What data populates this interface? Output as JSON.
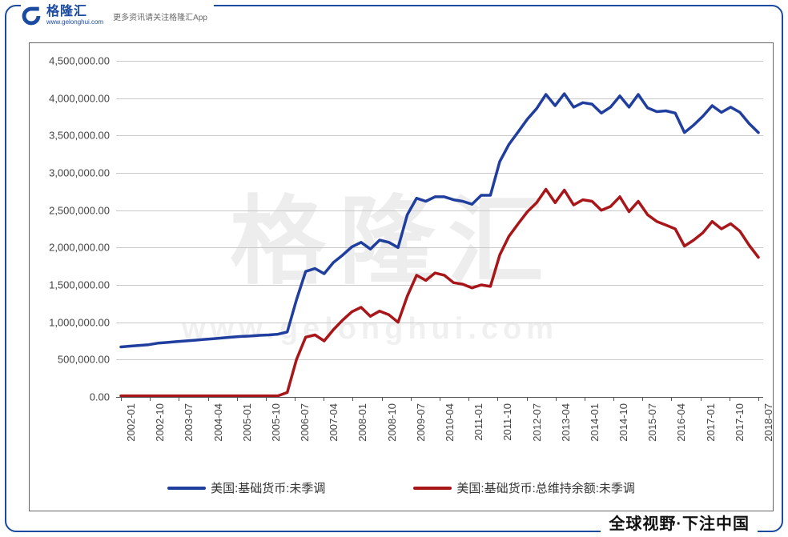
{
  "brand": {
    "name": "格隆汇",
    "url": "www.gelonghui.com",
    "tagline": "更多资讯请关注格隆汇App"
  },
  "footer": {
    "slogan": "全球视野·下注中国"
  },
  "watermark": {
    "big": "格隆汇",
    "url": "www.gelonghui.com"
  },
  "chart": {
    "type": "line",
    "background_color": "#ffffff",
    "grid_color": "#c9c9c9",
    "axis_color": "#555555",
    "label_color": "#444444",
    "label_fontsize": 13,
    "line_width": 3.5,
    "ylim": [
      0,
      4500000
    ],
    "ytick_step": 500000,
    "y_ticks": [
      "0.00",
      "500,000.00",
      "1,000,000.00",
      "1,500,000.00",
      "2,000,000.00",
      "2,500,000.00",
      "3,000,000.00",
      "3,500,000.00",
      "4,000,000.00",
      "4,500,000.00"
    ],
    "x_ticks": [
      "2002-01",
      "2002-10",
      "2003-07",
      "2004-04",
      "2005-01",
      "2005-10",
      "2006-07",
      "2007-04",
      "2008-01",
      "2008-10",
      "2009-07",
      "2010-04",
      "2011-01",
      "2011-10",
      "2012-07",
      "2013-04",
      "2014-01",
      "2014-10",
      "2015-07",
      "2016-04",
      "2017-01",
      "2017-10",
      "2018-07"
    ],
    "x_count": 23,
    "series": [
      {
        "name": "美国:基础货币:未季调",
        "color": "#1f3e9e",
        "values": [
          670000,
          680000,
          690000,
          700000,
          720000,
          730000,
          740000,
          750000,
          760000,
          770000,
          780000,
          790000,
          800000,
          810000,
          815000,
          825000,
          830000,
          840000,
          870000,
          1300000,
          1680000,
          1720000,
          1650000,
          1800000,
          1900000,
          2010000,
          2070000,
          1980000,
          2100000,
          2070000,
          2000000,
          2440000,
          2660000,
          2620000,
          2680000,
          2680000,
          2640000,
          2620000,
          2580000,
          2700000,
          2700000,
          3150000,
          3380000,
          3550000,
          3720000,
          3860000,
          4050000,
          3900000,
          4060000,
          3880000,
          3940000,
          3920000,
          3800000,
          3880000,
          4030000,
          3880000,
          4050000,
          3870000,
          3820000,
          3830000,
          3800000,
          3540000,
          3640000,
          3760000,
          3900000,
          3810000,
          3880000,
          3810000,
          3660000,
          3540000
        ]
      },
      {
        "name": "美国:基础货币:总维持余额:未季调",
        "color": "#a8161a",
        "values": [
          15000,
          15000,
          15000,
          15000,
          15000,
          15000,
          15000,
          15000,
          15000,
          15000,
          15000,
          15000,
          15000,
          15000,
          15000,
          15000,
          15000,
          15000,
          60000,
          500000,
          800000,
          830000,
          750000,
          900000,
          1030000,
          1140000,
          1200000,
          1080000,
          1150000,
          1100000,
          1000000,
          1350000,
          1630000,
          1560000,
          1660000,
          1630000,
          1530000,
          1510000,
          1460000,
          1500000,
          1480000,
          1900000,
          2150000,
          2320000,
          2480000,
          2600000,
          2780000,
          2600000,
          2770000,
          2570000,
          2640000,
          2620000,
          2500000,
          2550000,
          2680000,
          2480000,
          2620000,
          2440000,
          2350000,
          2300000,
          2250000,
          2020000,
          2100000,
          2200000,
          2350000,
          2250000,
          2320000,
          2220000,
          2030000,
          1870000
        ]
      }
    ],
    "legend": {
      "items": [
        {
          "label": "美国:基础货币:未季调",
          "color": "#1f3e9e"
        },
        {
          "label": "美国:基础货币:总维持余额:未季调",
          "color": "#a8161a"
        }
      ]
    }
  }
}
